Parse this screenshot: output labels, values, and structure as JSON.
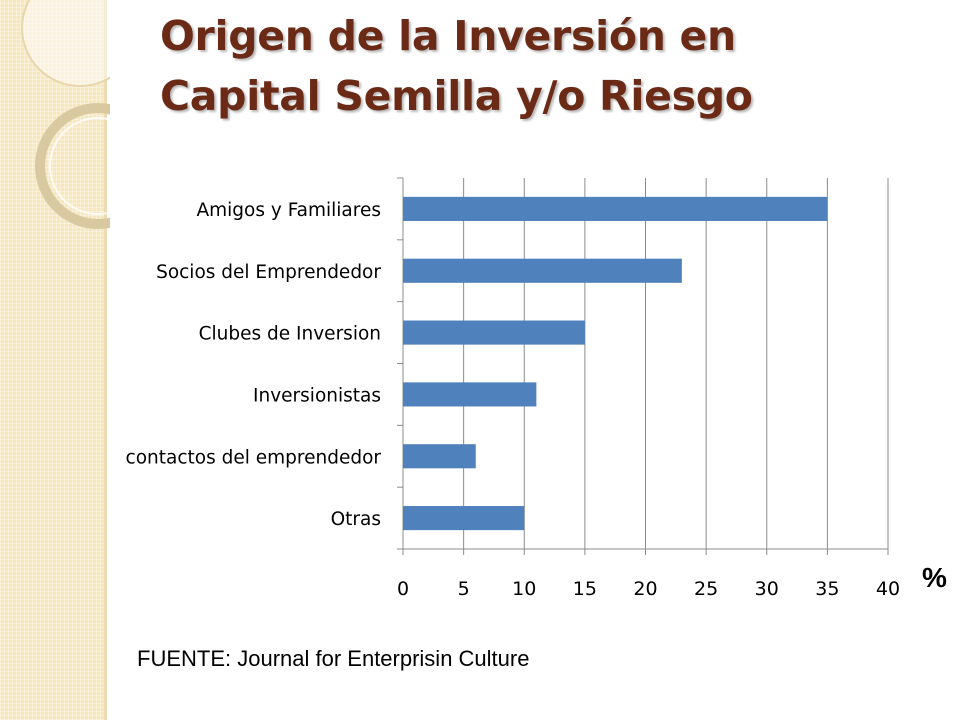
{
  "slide": {
    "title_line1": "Origen de la Inversión en",
    "title_line2": "Capital Semilla y/o Riesgo",
    "unit_label": "%",
    "source": "FUENTE: Journal for Enterprisin Culture"
  },
  "theme": {
    "bar_color": "#4f81bd",
    "title_color": "#6b2a16",
    "side_band_color": "#f6e7bf"
  },
  "chart_data": {
    "type": "bar",
    "orientation": "horizontal",
    "categories": [
      "Amigos y Familiares",
      "Socios del Emprendedor",
      "Clubes de Inversion",
      "Inversionistas",
      "contactos del emprendedor",
      "Otras"
    ],
    "values": [
      35,
      23,
      15,
      11,
      6,
      10
    ],
    "xlim": [
      0,
      40
    ],
    "xticks": [
      0,
      5,
      10,
      15,
      20,
      25,
      30,
      35,
      40
    ],
    "grid": "vertical"
  }
}
